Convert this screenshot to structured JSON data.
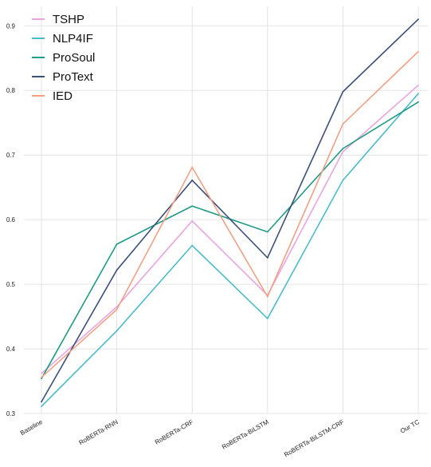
{
  "chart_data": {
    "type": "line",
    "title": "",
    "xlabel": "",
    "ylabel": "",
    "categories": [
      "Baseline",
      "RoBERTa-RNN",
      "RoBERTa-CRF",
      "RoBERTa-BiLSTM",
      "RoBERTa-BiLSTM-CRF",
      "Our TC"
    ],
    "ylim": [
      0.3,
      0.93
    ],
    "yticks": [
      "0.3",
      "0.4",
      "0.5",
      "0.6",
      "0.7",
      "0.8",
      "0.9"
    ],
    "grid": true,
    "legend_position": "top-left",
    "series": [
      {
        "name": "TSHP",
        "color": "#e8a5e0",
        "values": [
          0.362,
          0.465,
          0.598,
          0.483,
          0.705,
          0.808
        ]
      },
      {
        "name": "NLP4IF",
        "color": "#4bbbcc",
        "values": [
          0.311,
          0.428,
          0.56,
          0.447,
          0.661,
          0.795
        ]
      },
      {
        "name": "ProSoul",
        "color": "#1e9b83",
        "values": [
          0.354,
          0.562,
          0.621,
          0.581,
          0.71,
          0.782
        ]
      },
      {
        "name": "ProText",
        "color": "#3b4f7a",
        "values": [
          0.318,
          0.522,
          0.661,
          0.541,
          0.798,
          0.91
        ]
      },
      {
        "name": "IED",
        "color": "#f0a083",
        "values": [
          0.356,
          0.461,
          0.681,
          0.481,
          0.748,
          0.86
        ]
      }
    ]
  }
}
